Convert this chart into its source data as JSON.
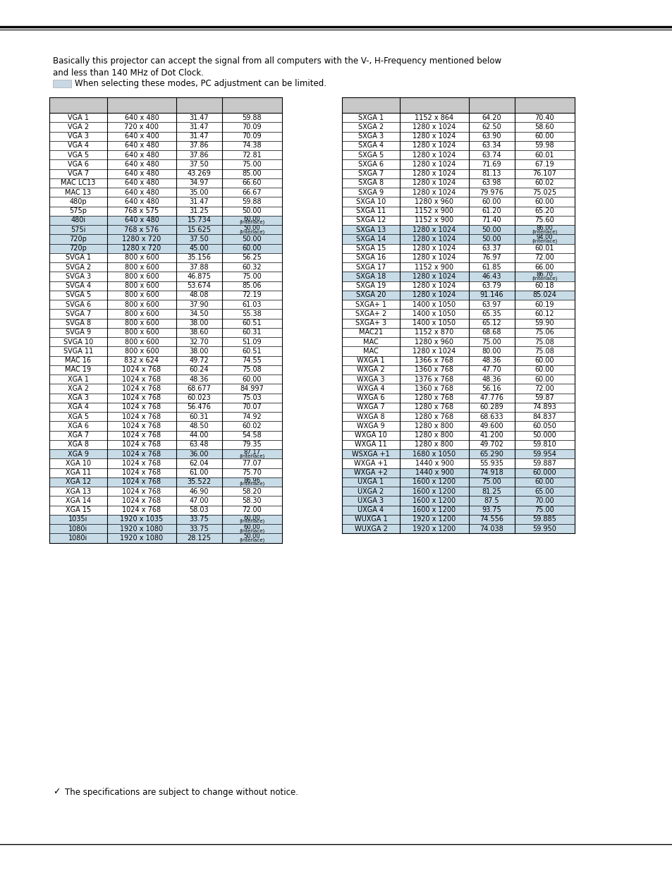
{
  "intro_text_line1": "Basically this projector can accept the signal from all computers with the V-, H-Frequency mentioned below",
  "intro_text_line2": "and less than 140 MHz of Dot Clock.",
  "legend_text": "When selecting these modes, PC adjustment can be limited.",
  "footer_text": "The specifications are subject to change without notice.",
  "bg_color": "#ffffff",
  "header_bg": "#c8c8c8",
  "highlight_bg": "#c8dce8",
  "left_table": [
    [
      "VGA 1",
      "640 x 480",
      "31.47",
      "59.88",
      false
    ],
    [
      "VGA 2",
      "720 x 400",
      "31.47",
      "70.09",
      false
    ],
    [
      "VGA 3",
      "640 x 400",
      "31.47",
      "70.09",
      false
    ],
    [
      "VGA 4",
      "640 x 480",
      "37.86",
      "74.38",
      false
    ],
    [
      "VGA 5",
      "640 x 480",
      "37.86",
      "72.81",
      false
    ],
    [
      "VGA 6",
      "640 x 480",
      "37.50",
      "75.00",
      false
    ],
    [
      "VGA 7",
      "640 x 480",
      "43.269",
      "85.00",
      false
    ],
    [
      "MAC LC13",
      "640 x 480",
      "34.97",
      "66.60",
      false
    ],
    [
      "MAC 13",
      "640 x 480",
      "35.00",
      "66.67",
      false
    ],
    [
      "480p",
      "640 x 480",
      "31.47",
      "59.88",
      false
    ],
    [
      "575p",
      "768 x 575",
      "31.25",
      "50.00",
      false
    ],
    [
      "480i",
      "640 x 480",
      "15.734",
      "60.00|(Interlace)",
      true
    ],
    [
      "575i",
      "768 x 576",
      "15.625",
      "50.00|(Interlace)",
      true
    ],
    [
      "720p",
      "1280 x 720",
      "37.50",
      "50.00",
      true
    ],
    [
      "720p",
      "1280 x 720",
      "45.00",
      "60.00",
      true
    ],
    [
      "SVGA 1",
      "800 x 600",
      "35.156",
      "56.25",
      false
    ],
    [
      "SVGA 2",
      "800 x 600",
      "37.88",
      "60.32",
      false
    ],
    [
      "SVGA 3",
      "800 x 600",
      "46.875",
      "75.00",
      false
    ],
    [
      "SVGA 4",
      "800 x 600",
      "53.674",
      "85.06",
      false
    ],
    [
      "SVGA 5",
      "800 x 600",
      "48.08",
      "72.19",
      false
    ],
    [
      "SVGA 6",
      "800 x 600",
      "37.90",
      "61.03",
      false
    ],
    [
      "SVGA 7",
      "800 x 600",
      "34.50",
      "55.38",
      false
    ],
    [
      "SVGA 8",
      "800 x 600",
      "38.00",
      "60.51",
      false
    ],
    [
      "SVGA 9",
      "800 x 600",
      "38.60",
      "60.31",
      false
    ],
    [
      "SVGA 10",
      "800 x 600",
      "32.70",
      "51.09",
      false
    ],
    [
      "SVGA 11",
      "800 x 600",
      "38.00",
      "60.51",
      false
    ],
    [
      "MAC 16",
      "832 x 624",
      "49.72",
      "74.55",
      false
    ],
    [
      "MAC 19",
      "1024 x 768",
      "60.24",
      "75.08",
      false
    ],
    [
      "XGA 1",
      "1024 x 768",
      "48.36",
      "60.00",
      false
    ],
    [
      "XGA 2",
      "1024 x 768",
      "68.677",
      "84.997",
      false
    ],
    [
      "XGA 3",
      "1024 x 768",
      "60.023",
      "75.03",
      false
    ],
    [
      "XGA 4",
      "1024 x 768",
      "56.476",
      "70.07",
      false
    ],
    [
      "XGA 5",
      "1024 x 768",
      "60.31",
      "74.92",
      false
    ],
    [
      "XGA 6",
      "1024 x 768",
      "48.50",
      "60.02",
      false
    ],
    [
      "XGA 7",
      "1024 x 768",
      "44.00",
      "54.58",
      false
    ],
    [
      "XGA 8",
      "1024 x 768",
      "63.48",
      "79.35",
      false
    ],
    [
      "XGA 9",
      "1024 x 768",
      "36.00",
      "87.17|(Interlace)",
      true
    ],
    [
      "XGA 10",
      "1024 x 768",
      "62.04",
      "77.07",
      false
    ],
    [
      "XGA 11",
      "1024 x 768",
      "61.00",
      "75.70",
      false
    ],
    [
      "XGA 12",
      "1024 x 768",
      "35.522",
      "86.96|(Interlace)",
      true
    ],
    [
      "XGA 13",
      "1024 x 768",
      "46.90",
      "58.20",
      false
    ],
    [
      "XGA 14",
      "1024 x 768",
      "47.00",
      "58.30",
      false
    ],
    [
      "XGA 15",
      "1024 x 768",
      "58.03",
      "72.00",
      false
    ],
    [
      "1035i",
      "1920 x 1035",
      "33.75",
      "60.00|(Interlace)",
      true
    ],
    [
      "1080i",
      "1920 x 1080",
      "33.75",
      "60.00|(Interlace)",
      true
    ],
    [
      "1080i",
      "1920 x 1080",
      "28.125",
      "50.00|(Interlace)",
      true
    ]
  ],
  "right_table": [
    [
      "SXGA 1",
      "1152 x 864",
      "64.20",
      "70.40",
      false
    ],
    [
      "SXGA 2",
      "1280 x 1024",
      "62.50",
      "58.60",
      false
    ],
    [
      "SXGA 3",
      "1280 x 1024",
      "63.90",
      "60.00",
      false
    ],
    [
      "SXGA 4",
      "1280 x 1024",
      "63.34",
      "59.98",
      false
    ],
    [
      "SXGA 5",
      "1280 x 1024",
      "63.74",
      "60.01",
      false
    ],
    [
      "SXGA 6",
      "1280 x 1024",
      "71.69",
      "67.19",
      false
    ],
    [
      "SXGA 7",
      "1280 x 1024",
      "81.13",
      "76.107",
      false
    ],
    [
      "SXGA 8",
      "1280 x 1024",
      "63.98",
      "60.02",
      false
    ],
    [
      "SXGA 9",
      "1280 x 1024",
      "79.976",
      "75.025",
      false
    ],
    [
      "SXGA 10",
      "1280 x 960",
      "60.00",
      "60.00",
      false
    ],
    [
      "SXGA 11",
      "1152 x 900",
      "61.20",
      "65.20",
      false
    ],
    [
      "SXGA 12",
      "1152 x 900",
      "71.40",
      "75.60",
      false
    ],
    [
      "SXGA 13",
      "1280 x 1024",
      "50.00",
      "86.00|(Interlace)",
      true
    ],
    [
      "SXGA 14",
      "1280 x 1024",
      "50.00",
      "94.00|(Interlace)",
      true
    ],
    [
      "SXGA 15",
      "1280 x 1024",
      "63.37",
      "60.01",
      false
    ],
    [
      "SXGA 16",
      "1280 x 1024",
      "76.97",
      "72.00",
      false
    ],
    [
      "SXGA 17",
      "1152 x 900",
      "61.85",
      "66.00",
      false
    ],
    [
      "SXGA 18",
      "1280 x 1024",
      "46.43",
      "86.70|(Interlace)",
      true
    ],
    [
      "SXGA 19",
      "1280 x 1024",
      "63.79",
      "60.18",
      false
    ],
    [
      "SXGA 20",
      "1280 x 1024",
      "91.146",
      "85.024",
      true
    ],
    [
      "SXGA+ 1",
      "1400 x 1050",
      "63.97",
      "60.19",
      false
    ],
    [
      "SXGA+ 2",
      "1400 x 1050",
      "65.35",
      "60.12",
      false
    ],
    [
      "SXGA+ 3",
      "1400 x 1050",
      "65.12",
      "59.90",
      false
    ],
    [
      "MAC21",
      "1152 x 870",
      "68.68",
      "75.06",
      false
    ],
    [
      "MAC",
      "1280 x 960",
      "75.00",
      "75.08",
      false
    ],
    [
      "MAC",
      "1280 x 1024",
      "80.00",
      "75.08",
      false
    ],
    [
      "WXGA 1",
      "1366 x 768",
      "48.36",
      "60.00",
      false
    ],
    [
      "WXGA 2",
      "1360 x 768",
      "47.70",
      "60.00",
      false
    ],
    [
      "WXGA 3",
      "1376 x 768",
      "48.36",
      "60.00",
      false
    ],
    [
      "WXGA 4",
      "1360 x 768",
      "56.16",
      "72.00",
      false
    ],
    [
      "WXGA 6",
      "1280 x 768",
      "47.776",
      "59.87",
      false
    ],
    [
      "WXGA 7",
      "1280 x 768",
      "60.289",
      "74.893",
      false
    ],
    [
      "WXGA 8",
      "1280 x 768",
      "68.633",
      "84.837",
      false
    ],
    [
      "WXGA 9",
      "1280 x 800",
      "49.600",
      "60.050",
      false
    ],
    [
      "WXGA 10",
      "1280 x 800",
      "41.200",
      "50.000",
      false
    ],
    [
      "WXGA 11",
      "1280 x 800",
      "49.702",
      "59.810",
      false
    ],
    [
      "WSXGA +1",
      "1680 x 1050",
      "65.290",
      "59.954",
      true
    ],
    [
      "WXGA +1",
      "1440 x 900",
      "55.935",
      "59.887",
      false
    ],
    [
      "WXGA +2",
      "1440 x 900",
      "74.918",
      "60.000",
      true
    ],
    [
      "UXGA 1",
      "1600 x 1200",
      "75.00",
      "60.00",
      true
    ],
    [
      "UXGA 2",
      "1600 x 1200",
      "81.25",
      "65.00",
      true
    ],
    [
      "UXGA 3",
      "1600 x 1200",
      "87.5",
      "70.00",
      true
    ],
    [
      "UXGA 4",
      "1600 x 1200",
      "93.75",
      "75.00",
      true
    ],
    [
      "WUXGA 1",
      "1920 x 1200",
      "74.556",
      "59.885",
      true
    ],
    [
      "WUXGA 2",
      "1920 x 1200",
      "74.038",
      "59.950",
      true
    ]
  ]
}
